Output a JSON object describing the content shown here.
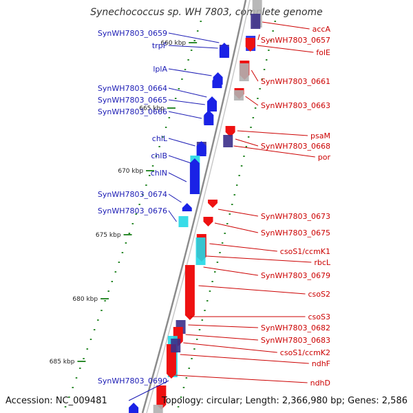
{
  "title": "Synechococcus sp. WH 7803, complete genome",
  "footer": {
    "accession": "Accession: NC_009481",
    "topology": "Topology: circular; Length: 2,366,980 bp; Genes: 2,586"
  },
  "colors": {
    "reverse_label": "#1a1ab4",
    "forward_label": "#cc0000",
    "tick": "#2e8b2e",
    "backbone": "#8c8c8c",
    "reverse_gene": "#1a22e6",
    "forward_gene": "#ee1111",
    "rna_gene": "#22d8e6",
    "dark_gene": "#3b2f8a",
    "grey_gene": "#b0b0b0"
  },
  "ticks": [
    "660 kbp",
    "665 kbp",
    "670 kbp",
    "675 kbp",
    "680 kbp",
    "685 kbp"
  ],
  "labels_reverse": [
    "SynWH7803_0659",
    "trpF",
    "lplA",
    "SynWH7803_0664",
    "SynWH7803_0665",
    "SynWH7803_0666",
    "chlL",
    "chlB",
    "chlN",
    "SynWH7803_0674",
    "SynWH7803_0676",
    "SynWH7803_0690"
  ],
  "labels_forward": [
    "accA",
    "SynWH7803_0657",
    "folE",
    "SynWH7803_0661",
    "SynWH7803_0663",
    "psaM",
    "SynWH7803_0668",
    "por",
    "SynWH7803_0673",
    "SynWH7803_0675",
    "csoS1/ccmK1",
    "rbcL",
    "SynWH7803_0679",
    "csoS2",
    "csoS3",
    "SynWH7803_0682",
    "SynWH7803_0683",
    "csoS1/ccmK2",
    "ndhF",
    "ndhD"
  ]
}
